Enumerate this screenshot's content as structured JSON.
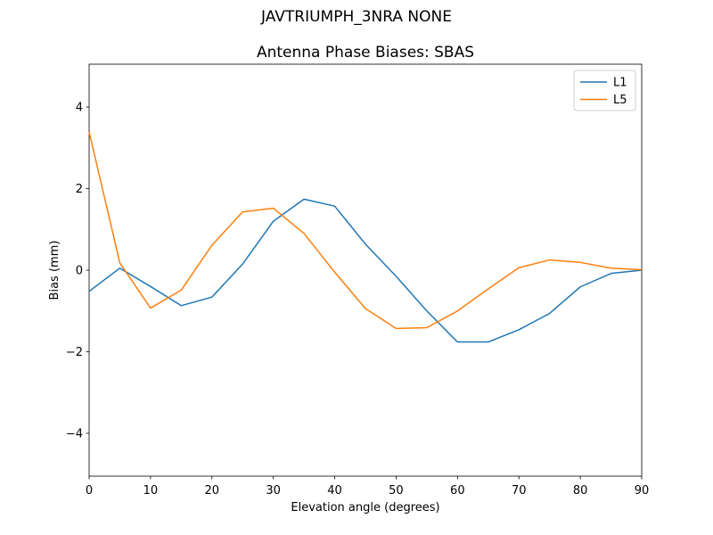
{
  "title": "JAVTRIUMPH_3NRA NONE",
  "chart_data": {
    "type": "line",
    "title": "Antenna Phase Biases: SBAS",
    "xlabel": "Elevation angle (degrees)",
    "ylabel": "Bias (mm)",
    "xlim": [
      0,
      90
    ],
    "ylim": [
      -5.05,
      5.05
    ],
    "xticks": [
      0,
      10,
      20,
      30,
      40,
      50,
      60,
      70,
      80,
      90
    ],
    "yticks": [
      -4,
      -2,
      0,
      2,
      4
    ],
    "grid": false,
    "legend_position": "upper right",
    "x": [
      0,
      5,
      10,
      15,
      20,
      25,
      30,
      35,
      40,
      45,
      50,
      55,
      60,
      65,
      70,
      75,
      80,
      85,
      90
    ],
    "series": [
      {
        "name": "L1",
        "color": "#1f77b4",
        "values": [
          -0.52,
          0.05,
          -0.4,
          -0.87,
          -0.66,
          0.15,
          1.2,
          1.74,
          1.57,
          0.64,
          -0.15,
          -1.0,
          -1.76,
          -1.76,
          -1.46,
          -1.06,
          -0.41,
          -0.08,
          0.0
        ]
      },
      {
        "name": "L5",
        "color": "#ff7f0e",
        "values": [
          3.39,
          0.18,
          -0.93,
          -0.49,
          0.61,
          1.43,
          1.52,
          0.9,
          -0.05,
          -0.94,
          -1.43,
          -1.41,
          -1.0,
          -0.46,
          0.06,
          0.25,
          0.19,
          0.05,
          0.01
        ]
      }
    ],
    "colors": {
      "spine": "#000000",
      "text": "#000000",
      "legend_border": "#cccccc",
      "background": "#ffffff"
    }
  }
}
